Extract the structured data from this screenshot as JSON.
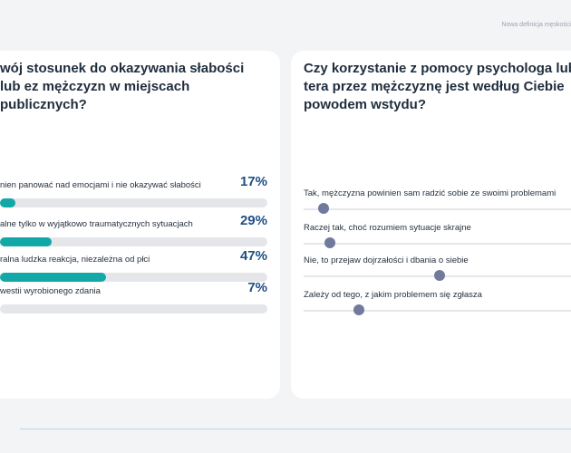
{
  "header": {
    "note": "Nowa definicja męskości"
  },
  "left_card": {
    "title": "wój stosunek do okazywania słabości lub ez mężczyzn w miejscach publicznych?"
  },
  "right_card": {
    "title": "Czy korzystanie z pomocy psychologa lub tera przez mężczyznę jest według Ciebie powodem wstydu?"
  },
  "colors": {
    "accent": "#13a8a8",
    "percent": "#1f4f86",
    "knob": "#717a9c",
    "track": "#e4e6ea"
  },
  "chart_data": [
    {
      "type": "bar",
      "title": "wój stosunek do okazywania słabości lub ez mężczyzn w miejscach publicznych?",
      "categories": [
        "nien panować nad emocjami i nie okazywać słabości",
        "alne tylko w wyjątkowo traumatycznych sytuacjach",
        "ralna ludzka reakcja, niezależna od płci",
        "westii wyrobionego zdania"
      ],
      "values": [
        17,
        29,
        47,
        7
      ],
      "value_labels": [
        "17%",
        "29%",
        "47%",
        "7%"
      ],
      "ylim": [
        0,
        100
      ],
      "orientation": "horizontal"
    },
    {
      "type": "scatter",
      "title": "Czy korzystanie z pomocy psychologa lub tera przez mężczyznę jest według Ciebie powodem wstydu?",
      "categories": [
        "Tak, mężczyzna powinien sam radzić sobie ze swoimi problemami",
        "Raczej tak, choć rozumiem sytuacje skrajne",
        "Nie, to przejaw dojrzałości i dbania o siebie",
        "Zależy od tego, z jakim problemem się zgłasza"
      ],
      "values": [
        7,
        9,
        47,
        19
      ],
      "xlim": [
        0,
        100
      ]
    }
  ]
}
